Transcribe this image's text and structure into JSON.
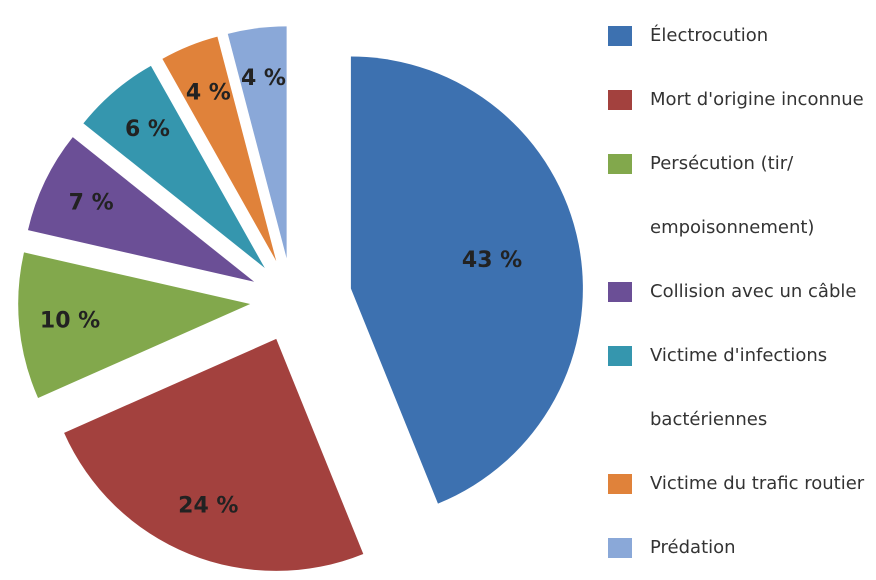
{
  "chart_data": {
    "type": "pie",
    "categories": [
      "Électrocution",
      "Mort d'origine inconnue",
      "Persécution (tir/ empoisonnement)",
      "Collision avec un câble",
      "Victime d'infections bactériennes",
      "Victime du trafic routier",
      "Prédation"
    ],
    "values": [
      43,
      24,
      10,
      7,
      6,
      4,
      4
    ],
    "value_labels": [
      "43 %",
      "24 %",
      "10 %",
      "7 %",
      "6 %",
      "4 %",
      "4 %"
    ],
    "colors": [
      "#3d71b0",
      "#a3413e",
      "#82a84c",
      "#6b4f96",
      "#3596ae",
      "#e0823a",
      "#8aa8d8"
    ],
    "legend": "right"
  }
}
